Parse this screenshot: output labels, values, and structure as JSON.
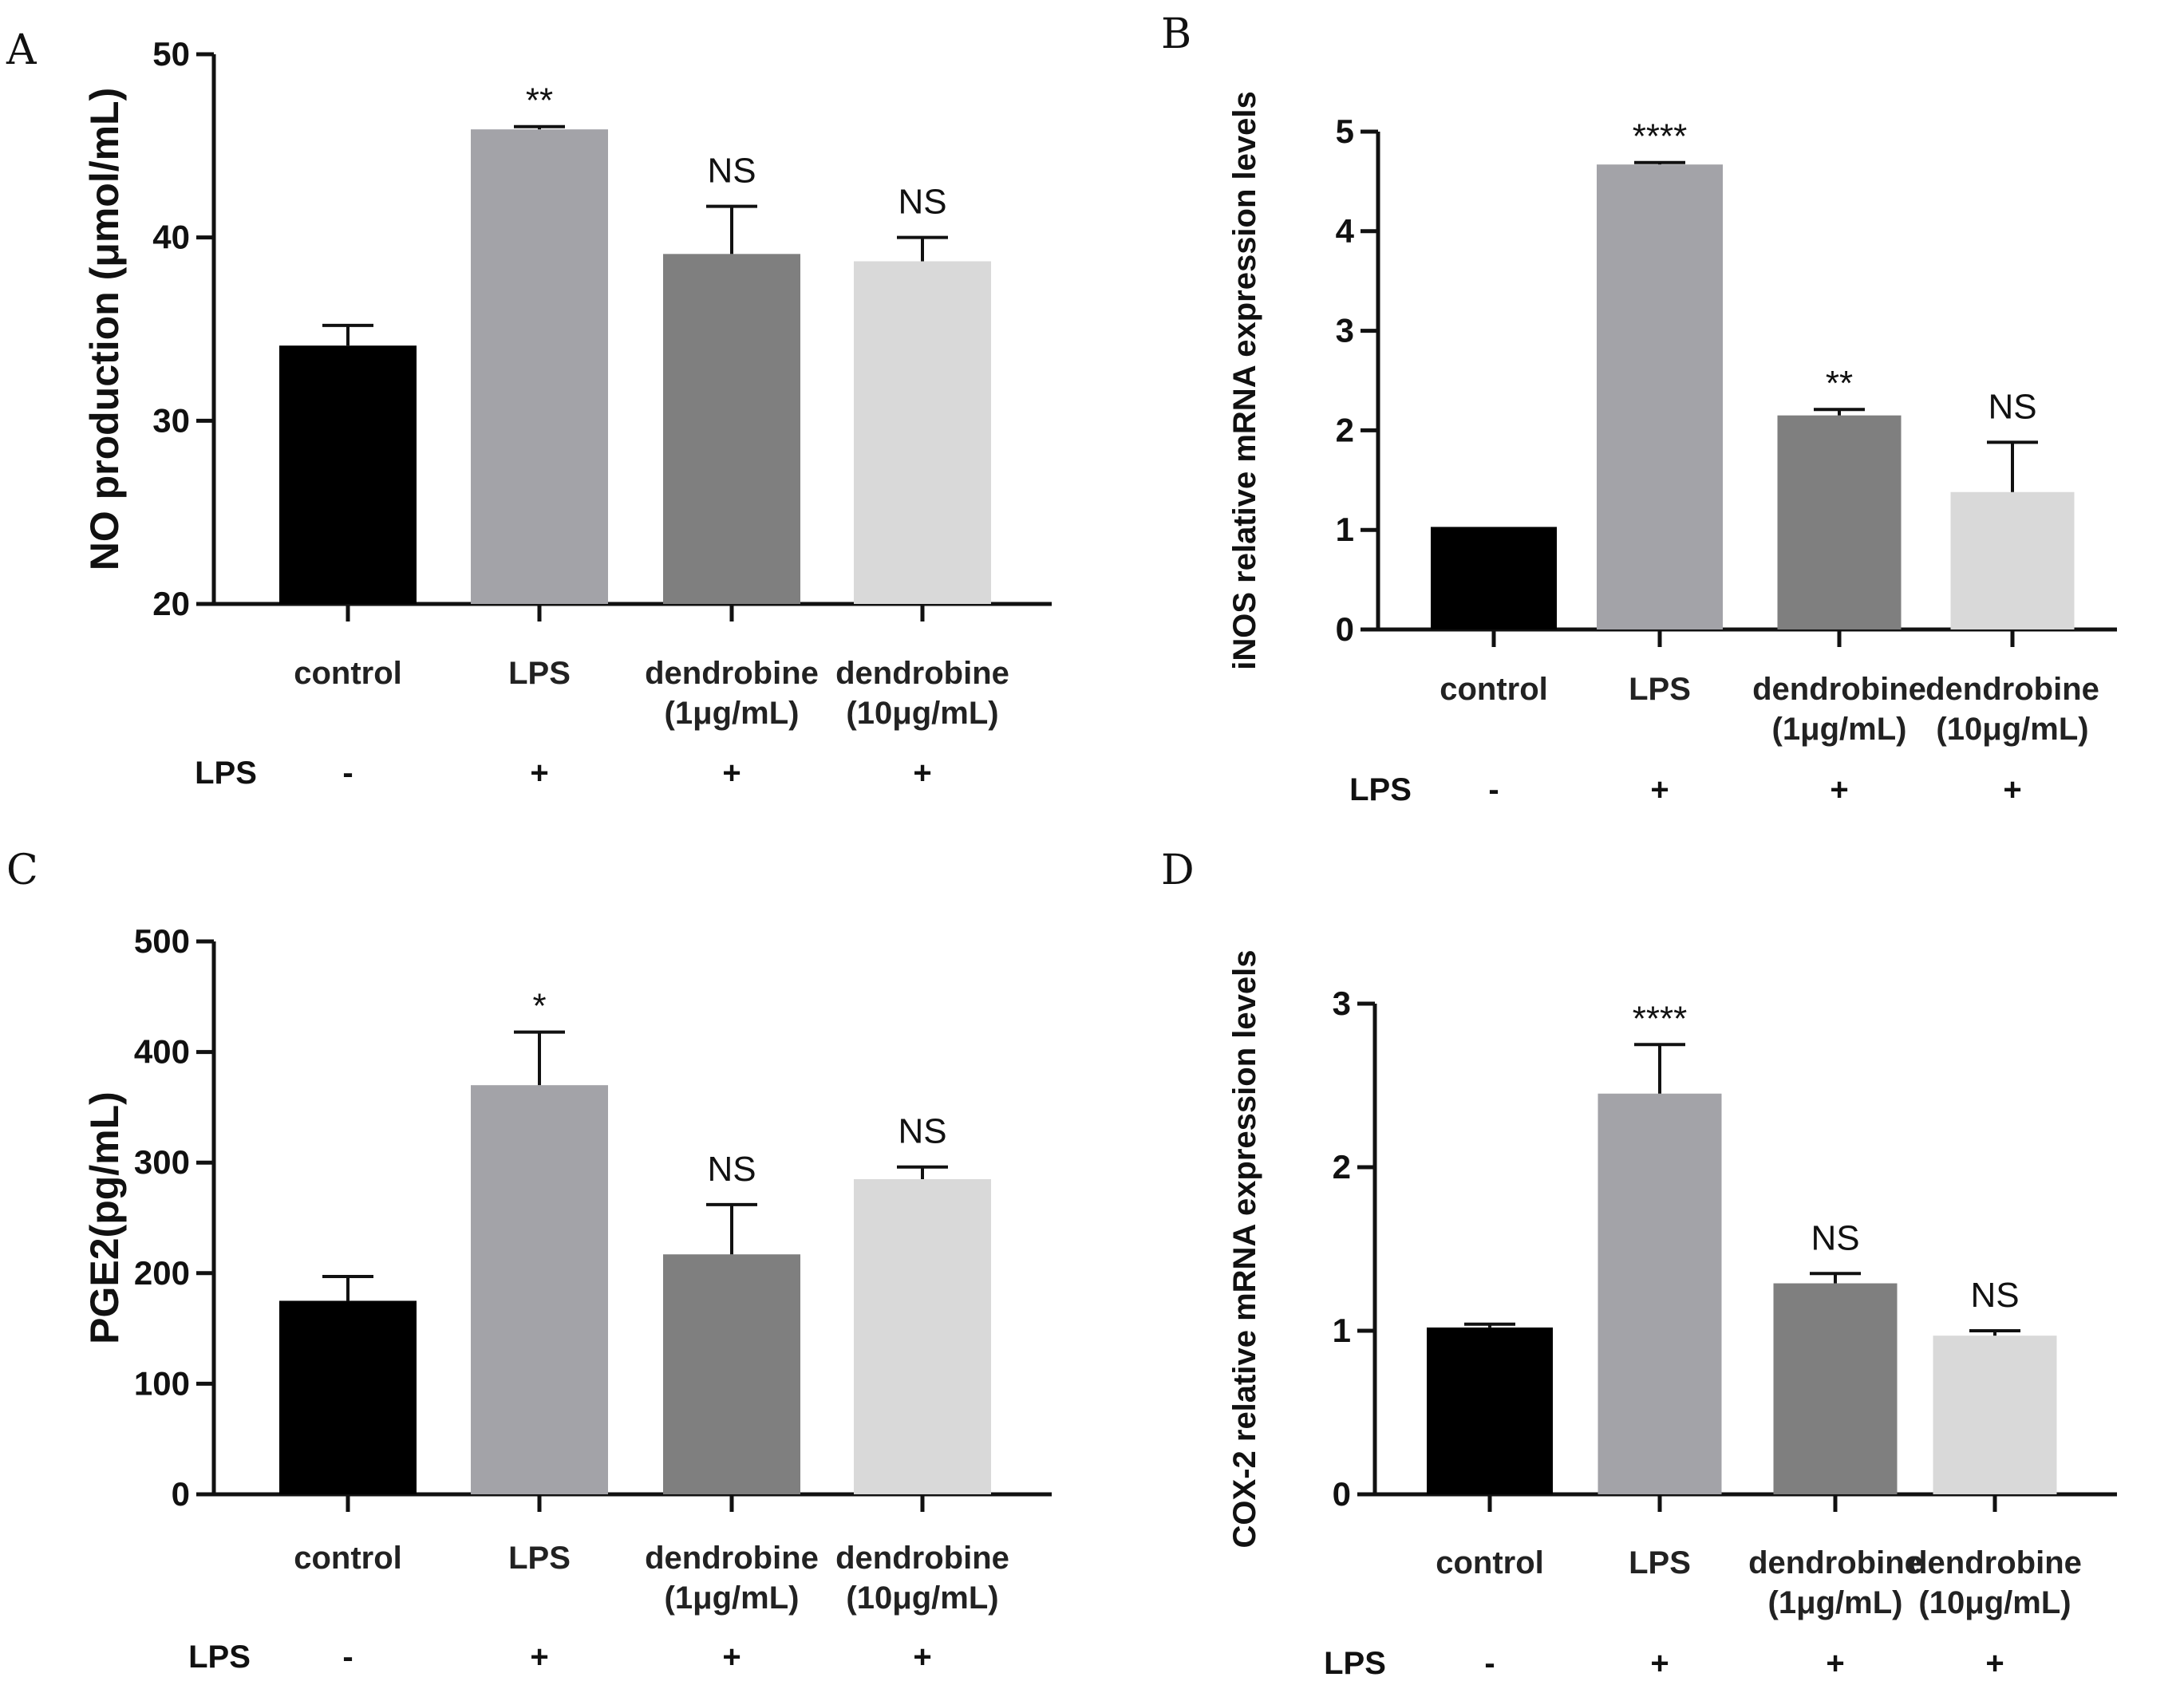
{
  "chart_data": [
    {
      "panel": "A",
      "type": "bar",
      "ylabel": "NO production (μmol/mL)",
      "ylim": [
        20,
        50
      ],
      "yticks": [
        20,
        30,
        40,
        50
      ],
      "categories": [
        [
          "control"
        ],
        [
          "LPS"
        ],
        [
          "dendrobine",
          "(1μg/mL)"
        ],
        [
          "dendrobine",
          "(10μg/mL)"
        ]
      ],
      "values": [
        34.1,
        45.9,
        39.1,
        38.7
      ],
      "errors": [
        1.1,
        0.15,
        2.6,
        1.3
      ],
      "significance": [
        "",
        "**",
        "NS",
        "NS"
      ],
      "lps_row": {
        "label": "LPS",
        "values": [
          "-",
          "+",
          "+",
          "+"
        ]
      },
      "colors": [
        "#000000",
        "#a3a3a8",
        "#7f7f7f",
        "#d9d9d9"
      ]
    },
    {
      "panel": "B",
      "type": "bar",
      "ylabel": "iNOS relative mRNA expression levels",
      "ylim": [
        0,
        5
      ],
      "yticks": [
        0,
        1,
        2,
        3,
        4,
        5
      ],
      "categories": [
        [
          "control"
        ],
        [
          "LPS"
        ],
        [
          "dendrobine",
          "(1μg/mL)"
        ],
        [
          "dendrobine",
          "(10μg/mL)"
        ]
      ],
      "values": [
        1.03,
        4.67,
        2.15,
        1.38
      ],
      "errors": [
        0.0,
        0.02,
        0.06,
        0.5
      ],
      "significance": [
        "",
        "****",
        "**",
        "NS"
      ],
      "lps_row": {
        "label": "LPS",
        "values": [
          "-",
          "+",
          "+",
          "+"
        ]
      },
      "colors": [
        "#000000",
        "#a3a3a8",
        "#7f7f7f",
        "#d9d9d9"
      ]
    },
    {
      "panel": "C",
      "type": "bar",
      "ylabel": "PGE2(pg/mL)",
      "ylim": [
        0,
        500
      ],
      "yticks": [
        0,
        100,
        200,
        300,
        400,
        500
      ],
      "categories": [
        [
          "control"
        ],
        [
          "LPS"
        ],
        [
          "dendrobine",
          "(1μg/mL)"
        ],
        [
          "dendrobine",
          "(10μg/mL)"
        ]
      ],
      "values": [
        175,
        370,
        217,
        285
      ],
      "errors": [
        22,
        48,
        45,
        11
      ],
      "significance": [
        "",
        "*",
        "NS",
        "NS"
      ],
      "lps_row": {
        "label": "LPS",
        "values": [
          "-",
          "+",
          "+",
          "+"
        ]
      },
      "colors": [
        "#000000",
        "#a3a3a8",
        "#7f7f7f",
        "#d9d9d9"
      ]
    },
    {
      "panel": "D",
      "type": "bar",
      "ylabel": "COX-2 relative mRNA expression levels",
      "ylim": [
        0,
        3
      ],
      "yticks": [
        0,
        1,
        2,
        3
      ],
      "categories": [
        [
          "control"
        ],
        [
          "LPS"
        ],
        [
          "dendrobine",
          "(1μg/mL)"
        ],
        [
          "dendrobine",
          "(10μg/mL)"
        ]
      ],
      "values": [
        1.02,
        2.45,
        1.29,
        0.97
      ],
      "errors": [
        0.02,
        0.3,
        0.06,
        0.03
      ],
      "significance": [
        "",
        "****",
        "NS",
        "NS"
      ],
      "lps_row": {
        "label": "LPS",
        "values": [
          "-",
          "+",
          "+",
          "+"
        ]
      },
      "colors": [
        "#000000",
        "#a3a3a8",
        "#7f7f7f",
        "#d9d9d9"
      ]
    }
  ]
}
